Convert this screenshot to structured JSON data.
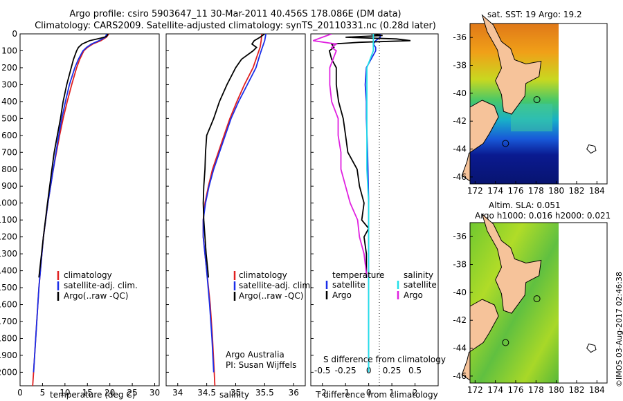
{
  "header": {
    "title_line1": "Argo profile: csiro 5903647_11 30-Mar-2011 40.456S 178.086E (DM data)",
    "title_line2": "Climatology: CARS2009. Satellite-adjusted climatology: synTS_20110331.nc (0.28d later)"
  },
  "colors": {
    "climatology": "#e02020",
    "satellite": "#1a2ee8",
    "argo": "#000000",
    "satellite_salinity": "#22e0e8",
    "argo_salinity": "#e020e0",
    "land": "#f6c39a"
  },
  "footer": {
    "argo_australia": "Argo Australia",
    "pi": "PI: Susan Wijffels",
    "imos": "©IMOS 03-Aug-2017 02:46:38"
  },
  "chart_data": [
    {
      "type": "line",
      "panel": "temperature",
      "xlabel": "temperature (deg C)",
      "xlim": [
        0,
        31
      ],
      "xticks": [
        0,
        5,
        10,
        15,
        20,
        25,
        30
      ],
      "ylim": [
        2080,
        0
      ],
      "yticks": [
        0,
        100,
        200,
        300,
        400,
        500,
        600,
        700,
        800,
        900,
        1000,
        1100,
        1200,
        1300,
        1400,
        1500,
        1600,
        1700,
        1800,
        1900,
        2000
      ],
      "legend": [
        "climatology",
        "satellite-adj. clim.",
        "Argo(..raw -QC)"
      ],
      "series": [
        {
          "name": "climatology",
          "y": [
            0,
            20,
            40,
            60,
            80,
            100,
            150,
            200,
            300,
            400,
            500,
            600,
            700,
            800,
            1000,
            1200,
            1500,
            2000,
            2080
          ],
          "values": [
            19.8,
            19.2,
            18.0,
            16.2,
            15.0,
            14.2,
            13.3,
            12.6,
            11.5,
            10.5,
            9.6,
            8.8,
            8.1,
            7.4,
            6.2,
            5.2,
            4.2,
            3.0,
            2.8
          ]
        },
        {
          "name": "satellite-adj. clim.",
          "y": [
            0,
            20,
            40,
            60,
            80,
            100,
            150,
            200,
            300,
            400,
            500,
            600,
            700,
            800,
            1000,
            1200,
            1500,
            2000
          ],
          "values": [
            19.3,
            19.0,
            17.6,
            15.9,
            14.8,
            14.0,
            13.0,
            12.2,
            11.0,
            10.1,
            9.3,
            8.6,
            8.0,
            7.4,
            6.2,
            5.2,
            4.2,
            3.0
          ]
        },
        {
          "name": "Argo(..raw -QC)",
          "y": [
            0,
            15,
            25,
            40,
            60,
            80,
            100,
            150,
            200,
            300,
            400,
            500,
            600,
            700,
            800,
            1000,
            1200,
            1440
          ],
          "values": [
            19.6,
            19.3,
            18.0,
            15.5,
            13.8,
            13.0,
            12.6,
            11.9,
            11.4,
            10.4,
            9.6,
            9.0,
            8.3,
            7.6,
            7.1,
            6.1,
            5.2,
            4.2
          ]
        }
      ]
    },
    {
      "type": "line",
      "panel": "salinity",
      "xlabel": "salinity",
      "xlim": [
        33.8,
        36.2
      ],
      "xticks": [
        34,
        34.5,
        35,
        35.5,
        36
      ],
      "ylim": [
        2080,
        0
      ],
      "legend": [
        "climatology",
        "satellite-adj. clim.",
        "Argo(..raw -QC)"
      ],
      "series": [
        {
          "name": "climatology",
          "y": [
            0,
            40,
            80,
            120,
            200,
            300,
            400,
            500,
            600,
            700,
            800,
            900,
            1000,
            1100,
            1200,
            1400,
            1600,
            1800,
            2000,
            2080
          ],
          "values": [
            35.45,
            35.44,
            35.42,
            35.38,
            35.3,
            35.15,
            35.02,
            34.9,
            34.8,
            34.7,
            34.6,
            34.53,
            34.47,
            34.44,
            34.44,
            34.5,
            34.56,
            34.6,
            34.63,
            34.64
          ]
        },
        {
          "name": "satellite-adj. clim.",
          "y": [
            0,
            40,
            80,
            120,
            200,
            300,
            400,
            500,
            600,
            700,
            800,
            900,
            1000,
            1100,
            1200,
            1400,
            1600,
            1800,
            2000
          ],
          "values": [
            35.52,
            35.5,
            35.46,
            35.42,
            35.35,
            35.2,
            35.05,
            34.92,
            34.82,
            34.72,
            34.62,
            34.54,
            34.48,
            34.44,
            34.44,
            34.5,
            34.55,
            34.59,
            34.62
          ]
        },
        {
          "name": "Argo(..raw -QC)",
          "y": [
            0,
            20,
            40,
            60,
            80,
            100,
            150,
            200,
            300,
            400,
            500,
            550,
            600,
            700,
            800,
            900,
            1000,
            1100,
            1200,
            1300,
            1400,
            1440
          ],
          "values": [
            35.5,
            35.42,
            35.32,
            35.28,
            35.36,
            35.3,
            35.1,
            35.0,
            34.85,
            34.72,
            34.62,
            34.56,
            34.5,
            34.48,
            34.47,
            34.45,
            34.44,
            34.45,
            34.47,
            34.49,
            34.52,
            34.53
          ]
        }
      ]
    },
    {
      "type": "line",
      "panel": "difference",
      "xlabel": "T difference from climatology",
      "x2label": "S difference from climatology",
      "xlim": [
        -2.5,
        3
      ],
      "xticks": [
        -2,
        -1,
        0,
        1,
        2
      ],
      "x2ticks": [
        "-0.5",
        "-0.25",
        "0",
        "0.25",
        "0.5"
      ],
      "ylim": [
        2080,
        0
      ],
      "legend_temperature": {
        "title": "temperature",
        "items": [
          "satellite",
          "Argo"
        ]
      },
      "legend_salinity": {
        "title": "salinity",
        "items": [
          "satellite",
          "Argo"
        ]
      },
      "series": [
        {
          "name": "satellite",
          "variable": "temperature",
          "y": [
            0,
            20,
            40,
            60,
            80,
            100,
            150,
            200,
            300,
            400,
            500,
            700,
            1000,
            1400,
            2000
          ],
          "values": [
            0.5,
            0.5,
            0.3,
            0.2,
            0.3,
            0.3,
            0.1,
            -0.1,
            -0.15,
            -0.1,
            -0.1,
            -0.05,
            0.0,
            0.0,
            0.0
          ]
        },
        {
          "name": "Argo",
          "variable": "temperature",
          "y": [
            0,
            10,
            20,
            30,
            40,
            50,
            60,
            80,
            100,
            150,
            200,
            300,
            400,
            500,
            600,
            700,
            800,
            900,
            1000,
            1100,
            1150,
            1200,
            1300,
            1440
          ],
          "values": [
            0.1,
            0.6,
            -1.0,
            1.2,
            1.8,
            -0.4,
            -1.6,
            -1.5,
            -1.7,
            -1.6,
            -1.4,
            -1.4,
            -1.3,
            -1.1,
            -1.0,
            -0.9,
            -0.5,
            -0.4,
            -0.2,
            -0.3,
            0.0,
            -0.2,
            -0.1,
            -0.1
          ]
        },
        {
          "name": "satellite",
          "variable": "salinity",
          "y": [
            0,
            100,
            200,
            300,
            500,
            800,
            1000,
            2000
          ],
          "values": [
            0.05,
            0.05,
            -0.02,
            -0.02,
            -0.02,
            -0.02,
            0.0,
            0.0
          ]
        },
        {
          "name": "Argo",
          "variable": "salinity",
          "y": [
            0,
            20,
            40,
            60,
            80,
            100,
            200,
            300,
            400,
            500,
            600,
            700,
            800,
            900,
            1000,
            1100,
            1200,
            1300,
            1440
          ],
          "values": [
            -0.4,
            -0.5,
            -0.6,
            -0.35,
            -0.4,
            -0.35,
            -0.42,
            -0.42,
            -0.4,
            -0.33,
            -0.33,
            -0.3,
            -0.3,
            -0.25,
            -0.2,
            -0.12,
            -0.1,
            -0.05,
            -0.02
          ]
        }
      ]
    },
    {
      "type": "heatmap",
      "panel": "sst-map",
      "title": "sat. SST: 19 Argo: 19.2",
      "xticks": [
        172,
        174,
        176,
        178,
        180,
        182,
        184
      ],
      "yticks": [
        -36,
        -38,
        -40,
        -42,
        -44,
        -46
      ],
      "xlim": [
        171.5,
        185
      ],
      "ylim": [
        -46.5,
        -35
      ],
      "argo_location": {
        "lon": 178.086,
        "lat": -40.456
      }
    },
    {
      "type": "heatmap",
      "panel": "sla-map",
      "title_line1": "Altim. SLA: 0.051",
      "title_line2": "Argo h1000: 0.016 h2000: 0.021",
      "xticks": [
        172,
        174,
        176,
        178,
        180,
        182,
        184
      ],
      "yticks": [
        -36,
        -38,
        -40,
        -42,
        -44,
        -46
      ],
      "xlim": [
        171.5,
        185
      ],
      "ylim": [
        -46.5,
        -35
      ],
      "argo_location": {
        "lon": 178.086,
        "lat": -40.456
      }
    }
  ]
}
